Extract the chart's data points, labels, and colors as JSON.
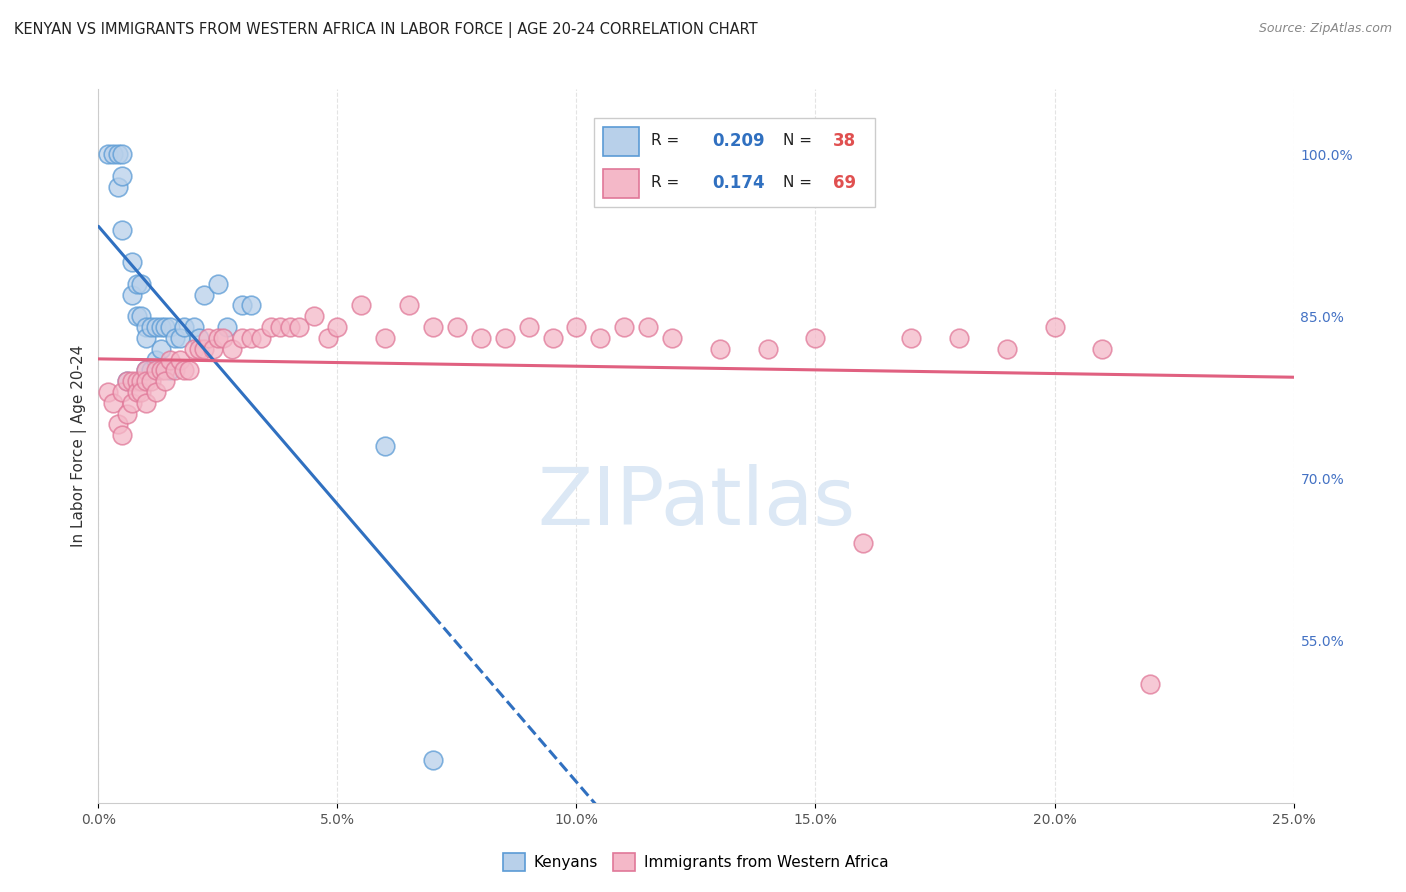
{
  "title": "KENYAN VS IMMIGRANTS FROM WESTERN AFRICA IN LABOR FORCE | AGE 20-24 CORRELATION CHART",
  "source": "Source: ZipAtlas.com",
  "ylabel": "In Labor Force | Age 20-24",
  "right_ytick_values": [
    0.55,
    0.7,
    0.85,
    1.0
  ],
  "right_ytick_labels": [
    "55.0%",
    "70.0%",
    "85.0%",
    "100.0%"
  ],
  "legend_blue_r": "0.209",
  "legend_blue_n": "38",
  "legend_pink_r": "0.174",
  "legend_pink_n": "69",
  "blue_face": "#b8d0ea",
  "blue_edge": "#5b9bd5",
  "pink_face": "#f4b8c8",
  "pink_edge": "#e07898",
  "blue_line": "#3070c0",
  "pink_line": "#e06080",
  "watermark": "ZIPatlas",
  "watermark_color": "#dce8f5",
  "xlim": [
    0.0,
    0.25
  ],
  "ylim": [
    0.4,
    1.06
  ],
  "xticks": [
    0.0,
    0.05,
    0.1,
    0.15,
    0.2,
    0.25
  ],
  "xtick_labels": [
    "0.0%",
    "5.0%",
    "10.0%",
    "15.0%",
    "20.0%",
    "25.0%"
  ],
  "blue_x": [
    0.002,
    0.003,
    0.004,
    0.004,
    0.005,
    0.005,
    0.005,
    0.006,
    0.007,
    0.007,
    0.008,
    0.008,
    0.009,
    0.009,
    0.01,
    0.01,
    0.01,
    0.011,
    0.011,
    0.012,
    0.012,
    0.013,
    0.013,
    0.014,
    0.015,
    0.015,
    0.016,
    0.017,
    0.018,
    0.02,
    0.021,
    0.022,
    0.025,
    0.027,
    0.03,
    0.032,
    0.06,
    0.07
  ],
  "blue_y": [
    1.0,
    1.0,
    1.0,
    0.97,
    1.0,
    0.98,
    0.93,
    0.79,
    0.9,
    0.87,
    0.88,
    0.85,
    0.88,
    0.85,
    0.84,
    0.83,
    0.8,
    0.84,
    0.8,
    0.84,
    0.81,
    0.84,
    0.82,
    0.84,
    0.84,
    0.8,
    0.83,
    0.83,
    0.84,
    0.84,
    0.83,
    0.87,
    0.88,
    0.84,
    0.86,
    0.86,
    0.73,
    0.44
  ],
  "pink_x": [
    0.002,
    0.003,
    0.004,
    0.005,
    0.005,
    0.006,
    0.006,
    0.007,
    0.007,
    0.008,
    0.008,
    0.009,
    0.009,
    0.01,
    0.01,
    0.01,
    0.011,
    0.012,
    0.012,
    0.013,
    0.014,
    0.014,
    0.015,
    0.016,
    0.017,
    0.018,
    0.019,
    0.02,
    0.021,
    0.022,
    0.023,
    0.024,
    0.025,
    0.026,
    0.028,
    0.03,
    0.032,
    0.034,
    0.036,
    0.038,
    0.04,
    0.042,
    0.045,
    0.048,
    0.05,
    0.055,
    0.06,
    0.065,
    0.07,
    0.075,
    0.08,
    0.085,
    0.09,
    0.095,
    0.1,
    0.105,
    0.11,
    0.115,
    0.12,
    0.13,
    0.14,
    0.15,
    0.16,
    0.17,
    0.18,
    0.19,
    0.2,
    0.21,
    0.22
  ],
  "pink_y": [
    0.78,
    0.77,
    0.75,
    0.78,
    0.74,
    0.79,
    0.76,
    0.79,
    0.77,
    0.79,
    0.78,
    0.79,
    0.78,
    0.8,
    0.79,
    0.77,
    0.79,
    0.8,
    0.78,
    0.8,
    0.8,
    0.79,
    0.81,
    0.8,
    0.81,
    0.8,
    0.8,
    0.82,
    0.82,
    0.82,
    0.83,
    0.82,
    0.83,
    0.83,
    0.82,
    0.83,
    0.83,
    0.83,
    0.84,
    0.84,
    0.84,
    0.84,
    0.85,
    0.83,
    0.84,
    0.86,
    0.83,
    0.86,
    0.84,
    0.84,
    0.83,
    0.83,
    0.84,
    0.83,
    0.84,
    0.83,
    0.84,
    0.84,
    0.83,
    0.82,
    0.82,
    0.83,
    0.64,
    0.83,
    0.83,
    0.82,
    0.84,
    0.82,
    0.51
  ],
  "grid_color": "#dddddd",
  "spine_color": "#cccccc"
}
